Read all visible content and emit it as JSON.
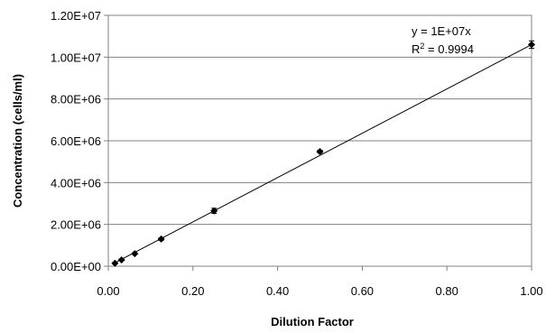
{
  "chart_data": {
    "type": "scatter",
    "title": "",
    "xlabel": "Dilution Factor",
    "ylabel": "Concentration (cells/ml)",
    "xlim": [
      0,
      1
    ],
    "ylim": [
      0,
      12000000
    ],
    "x_ticks": [
      0,
      0.2,
      0.4,
      0.6,
      0.8,
      1.0
    ],
    "x_tick_labels": [
      "0.00",
      "0.20",
      "0.40",
      "0.60",
      "0.80",
      "1.00"
    ],
    "y_ticks": [
      0,
      2000000,
      4000000,
      6000000,
      8000000,
      10000000,
      12000000
    ],
    "y_tick_labels": [
      "0.00E+00",
      "2.00E+06",
      "4.00E+06",
      "6.00E+06",
      "8.00E+06",
      "1.00E+07",
      "1.20E+07"
    ],
    "grid": {
      "horizontal": true,
      "vertical": false
    },
    "series": [
      {
        "x": [
          0.015625,
          0.03125,
          0.0625,
          0.125,
          0.25,
          0.5,
          1.0
        ],
        "y": [
          140000,
          300000,
          600000,
          1300000,
          2650000,
          5480000,
          10600000
        ],
        "y_error": [
          30000,
          30000,
          40000,
          60000,
          120000,
          70000,
          180000
        ],
        "marker": "diamond",
        "color": "#000000"
      }
    ],
    "trendline": {
      "type": "linear",
      "slope": 10600000,
      "intercept": 0,
      "equation": "y = 1E+07x",
      "r_squared_label": "R",
      "r_squared_exponent": "2",
      "r_squared_value": " = 0.9994"
    }
  }
}
